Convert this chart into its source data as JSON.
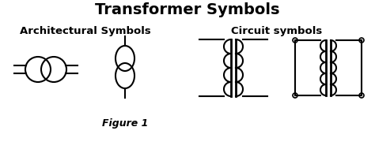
{
  "title": "Transformer Symbols",
  "arch_label": "Architectural Symbols",
  "circuit_label": "Circuit symbols",
  "figure_label": "Figure 1",
  "bg_color": "#ffffff",
  "line_color": "#000000",
  "title_fontsize": 14,
  "arch_label_fontsize": 9.5,
  "circuit_label_fontsize": 9.5,
  "figure_label_fontsize": 9
}
